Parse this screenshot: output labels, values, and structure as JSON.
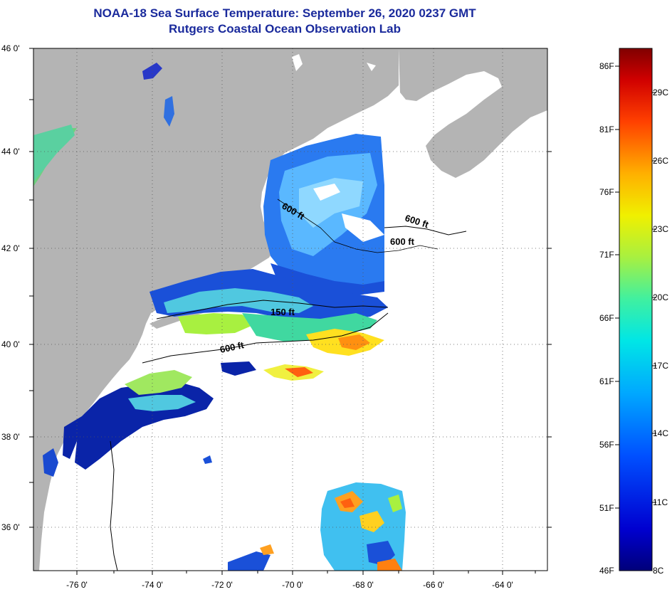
{
  "title": {
    "line1": "NOAA-18 Sea Surface Temperature:  September 26, 2020 0237 GMT",
    "line2": "Rutgers Coastal Ocean Observation Lab"
  },
  "axes": {
    "lat_labels": [
      "46 0'",
      "44 0'",
      "42 0'",
      "40 0'",
      "38 0'",
      "36 0'"
    ],
    "lon_labels": [
      "-76 0'",
      "-74 0'",
      "-72 0'",
      "-70 0'",
      "-68 0'",
      "-66 0'",
      "-64 0'"
    ]
  },
  "contours": {
    "labels": [
      "600 ft",
      "600 ft",
      "600 ft",
      "150 ft",
      "600 ft"
    ]
  },
  "colorbar": {
    "fahrenheit": [
      "86F",
      "81F",
      "76F",
      "71F",
      "66F",
      "61F",
      "56F",
      "51F",
      "46F"
    ],
    "celsius": [
      "29C",
      "26C",
      "23C",
      "20C",
      "17C",
      "14C",
      "11C",
      "8C"
    ]
  },
  "colors": {
    "land": "#b4b4b4",
    "ocean": "#ffffff",
    "title": "#1a2a9c"
  }
}
